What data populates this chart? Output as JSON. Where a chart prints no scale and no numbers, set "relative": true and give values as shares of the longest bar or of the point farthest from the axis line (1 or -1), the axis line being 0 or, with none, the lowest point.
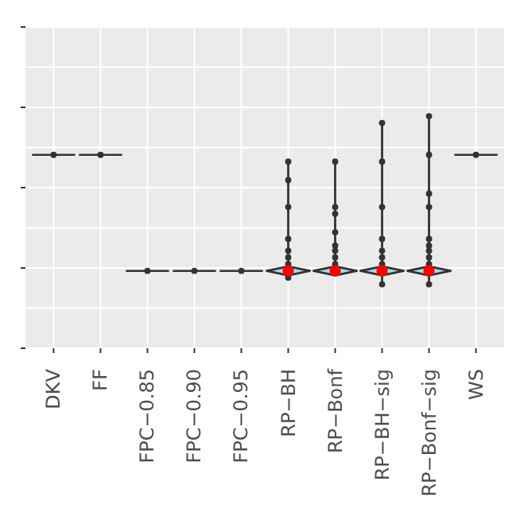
{
  "chart_data": {
    "type": "scatter",
    "relative": true,
    "grid": true,
    "marker": "circle",
    "categories": [
      "DKV",
      "FF",
      "FPC−0.85",
      "FPC−0.90",
      "FPC−0.95",
      "RP−BH",
      "RP−Bonf",
      "RP−BH−sig",
      "RP−Bonf−sig",
      "WS"
    ],
    "series": [
      {
        "color": "#333333",
        "x": [
          "DKV",
          "FF",
          "FPC−0.85",
          "FPC−0.90",
          "FPC−0.95",
          "RP−BH",
          "RP−BH",
          "RP−BH",
          "RP−BH",
          "RP−BH",
          "RP−BH",
          "RP−BH",
          "RP−BH",
          "RP−Bonf",
          "RP−Bonf",
          "RP−Bonf",
          "RP−Bonf",
          "RP−Bonf",
          "RP−Bonf",
          "RP−Bonf",
          "RP−Bonf",
          "RP−BH−sig",
          "RP−BH−sig",
          "RP−BH−sig",
          "RP−BH−sig",
          "RP−BH−sig",
          "RP−BH−sig",
          "RP−BH−sig",
          "RP−BH−sig",
          "RP−Bonf−sig",
          "RP−Bonf−sig",
          "RP−Bonf−sig",
          "RP−Bonf−sig",
          "RP−Bonf−sig",
          "RP−Bonf−sig",
          "RP−Bonf−sig",
          "RP−Bonf−sig",
          "RP−Bonf−sig",
          "RP−Bonf−sig",
          "WS"
        ],
        "values": [
          0.77,
          0.77,
          0.08,
          0.08,
          0.08,
          0.73,
          0.62,
          0.46,
          0.27,
          0.2,
          0.16,
          0.12,
          0.04,
          0.73,
          0.46,
          0.42,
          0.31,
          0.23,
          0.2,
          0.16,
          0.12,
          0.96,
          0.73,
          0.46,
          0.27,
          0.2,
          0.16,
          0.12,
          0,
          1,
          0.77,
          0.54,
          0.46,
          0.27,
          0.23,
          0.2,
          0.16,
          0.12,
          0,
          0.77
        ]
      },
      {
        "color": "#ff0000",
        "x": [
          "RP−BH",
          "RP−Bonf",
          "RP−BH−sig",
          "RP−Bonf−sig"
        ],
        "values": [
          0.08,
          0.08,
          0.08,
          0.08
        ]
      }
    ]
  }
}
